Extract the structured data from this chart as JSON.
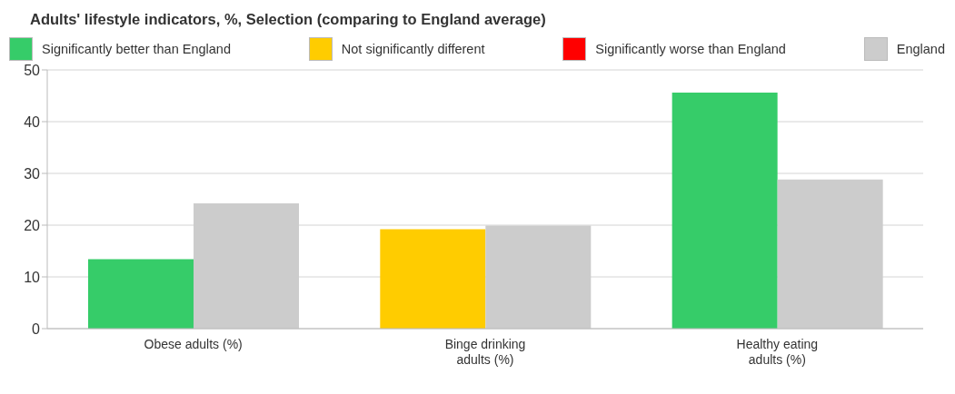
{
  "chart_data": {
    "type": "bar",
    "title": "Adults' lifestyle indicators, %, Selection (comparing to England average)",
    "categories": [
      "Obese adults (%)",
      "Binge drinking adults (%)",
      "Healthy eating adults (%)"
    ],
    "series": [
      {
        "name": "Significantly better than England",
        "color": "#36cc69",
        "values": [
          13.4,
          null,
          45.6
        ]
      },
      {
        "name": "Not significantly different",
        "color": "#ffcc00",
        "values": [
          null,
          19.2,
          null
        ]
      },
      {
        "name": "Significantly worse than England",
        "color": "#ff0000",
        "values": [
          null,
          null,
          null
        ]
      },
      {
        "name": "England",
        "color": "#cccccc",
        "values": [
          24.2,
          19.9,
          28.8
        ]
      }
    ],
    "ylim": [
      0,
      50
    ],
    "yticks": [
      0,
      10,
      20,
      30,
      40,
      50
    ],
    "grid": "y",
    "legend": "top"
  }
}
